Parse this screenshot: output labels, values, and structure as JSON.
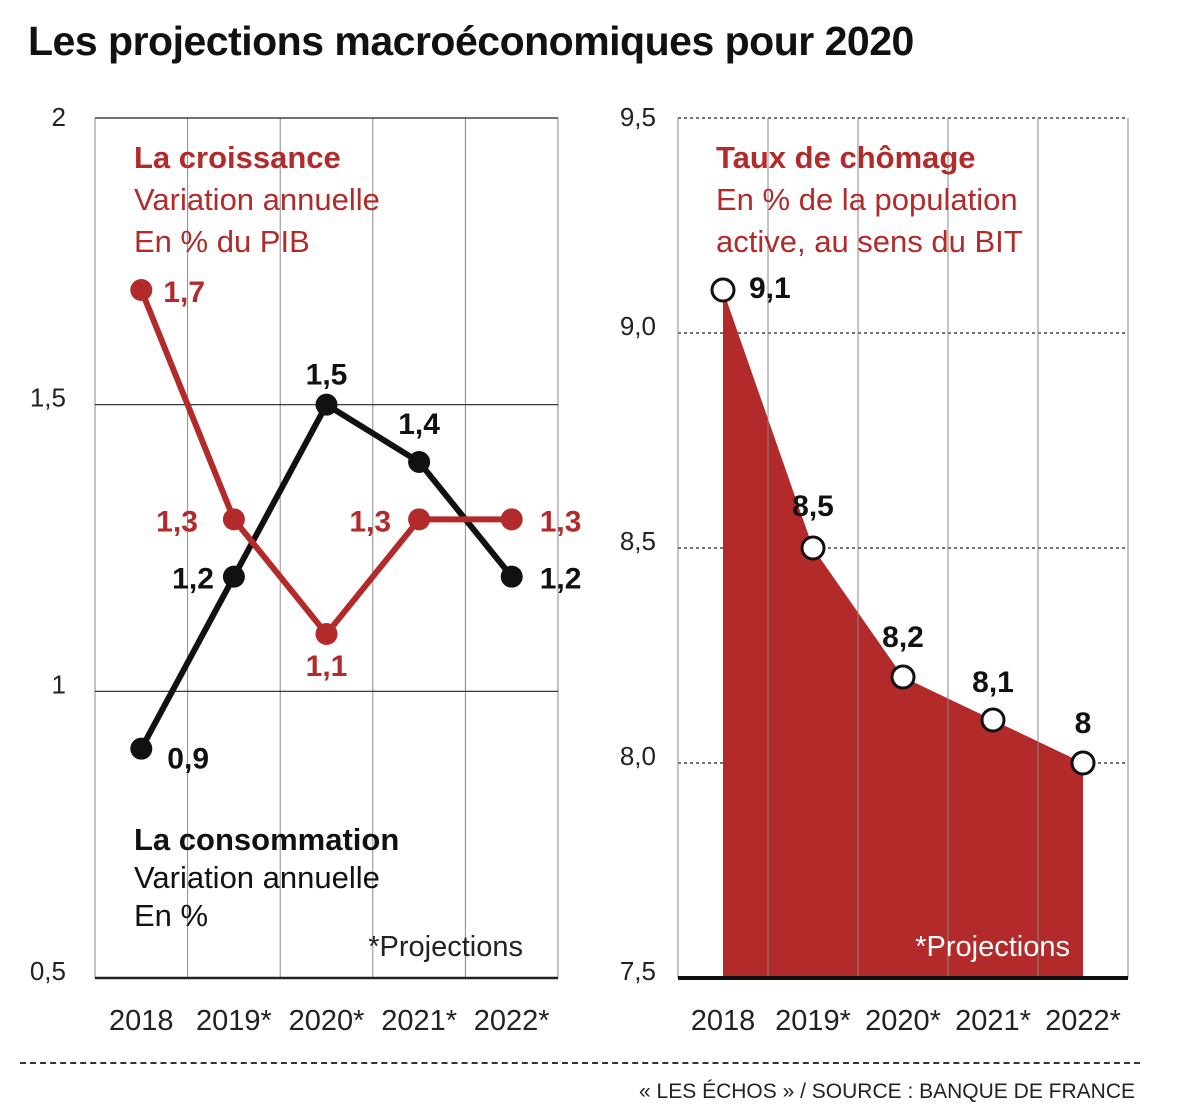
{
  "title": "Les projections macroéconomiques pour 2020",
  "source": "« LES ÉCHOS » / SOURCE : BANQUE DE FRANCE",
  "colors": {
    "red": "#b22a2a",
    "black": "#111111",
    "grid": "#222222"
  },
  "chart_data": [
    {
      "type": "line",
      "categories": [
        "2018",
        "2019*",
        "2020*",
        "2021*",
        "2022*"
      ],
      "ylim": [
        0.5,
        2
      ],
      "y_ticks": [
        "0,5",
        "1",
        "1,5",
        "2"
      ],
      "y_tick_values": [
        0.5,
        1,
        1.5,
        2
      ],
      "note": "*Projections",
      "series": [
        {
          "name": "La croissance",
          "subtitle": [
            "Variation annuelle",
            "En % du PIB"
          ],
          "color": "#b22a2a",
          "values": [
            1.7,
            1.3,
            1.1,
            1.3,
            1.3
          ],
          "labels": [
            "1,7",
            "1,3",
            "1,1",
            "1,3",
            "1,3"
          ]
        },
        {
          "name": "La consommation",
          "subtitle": [
            "Variation annuelle",
            "En %"
          ],
          "color": "#111111",
          "values": [
            0.9,
            1.2,
            1.5,
            1.4,
            1.2
          ],
          "labels": [
            "0,9",
            "1,2",
            "1,5",
            "1,4",
            "1,2"
          ]
        }
      ]
    },
    {
      "type": "area",
      "categories": [
        "2018",
        "2019*",
        "2020*",
        "2021*",
        "2022*"
      ],
      "ylim": [
        7.5,
        9.5
      ],
      "y_ticks": [
        "7,5",
        "8,0",
        "8,5",
        "9,0",
        "9,5"
      ],
      "y_tick_values": [
        7.5,
        8.0,
        8.5,
        9.0,
        9.5
      ],
      "note": "*Projections",
      "series": [
        {
          "name": "Taux de chômage",
          "subtitle": [
            "En % de la population",
            "active, au sens du BIT"
          ],
          "color": "#b22a2a",
          "values": [
            9.1,
            8.5,
            8.2,
            8.1,
            8.0
          ],
          "labels": [
            "9,1",
            "8,5",
            "8,2",
            "8,1",
            "8"
          ]
        }
      ]
    }
  ]
}
